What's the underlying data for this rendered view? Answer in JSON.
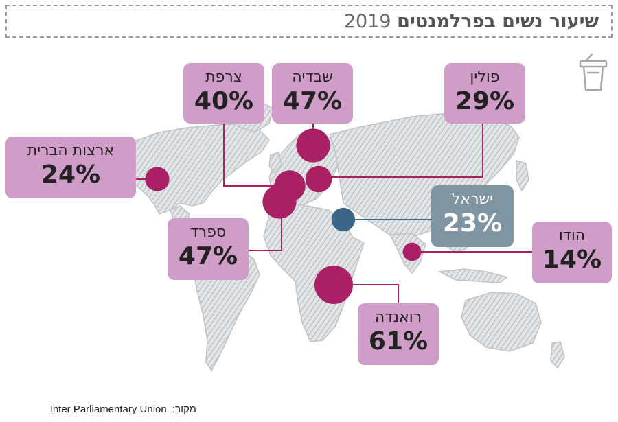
{
  "title": {
    "main": "שיעור נשים בפרלמנטים",
    "year": "2019"
  },
  "source": {
    "label": "מקור:",
    "value": "Inter Parliamentary Union"
  },
  "icon": "podium-icon",
  "colors": {
    "bubble": "#aa2065",
    "box": "#d09dc8",
    "israel_bubble": "#3d6585",
    "israel_box": "#7f95a2",
    "map": "#bfc3c6",
    "connector": "#aa2065"
  },
  "chart_data": {
    "type": "bubble-map",
    "title": "שיעור נשים בפרלמנטים 2019",
    "unit": "%",
    "series": [
      {
        "country": "ארצות הברית",
        "value": 24,
        "label": "24%"
      },
      {
        "country": "צרפת",
        "value": 40,
        "label": "40%"
      },
      {
        "country": "שבדיה",
        "value": 47,
        "label": "47%"
      },
      {
        "country": "פולין",
        "value": 29,
        "label": "29%"
      },
      {
        "country": "ישראל",
        "value": 23,
        "label": "23%",
        "highlight": true
      },
      {
        "country": "ספרד",
        "value": 47,
        "label": "47%"
      },
      {
        "country": "הודו",
        "value": 14,
        "label": "14%"
      },
      {
        "country": "רואנדה",
        "value": 61,
        "label": "61%"
      }
    ]
  }
}
